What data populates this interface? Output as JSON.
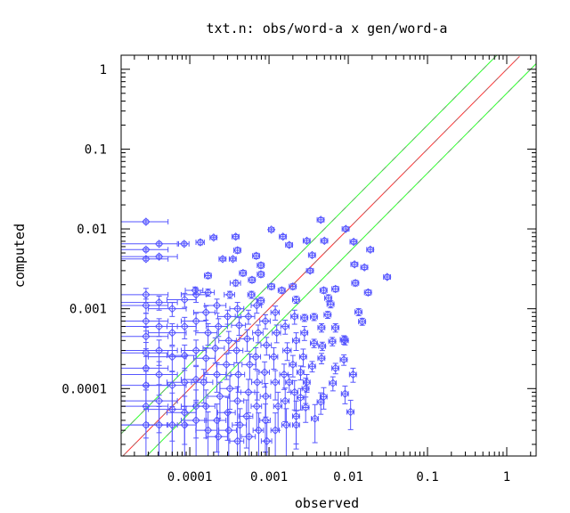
{
  "chart_data": {
    "type": "scatter",
    "title": "txt.n: obs/word-a x gen/word-a",
    "xlabel": "observed",
    "ylabel": "computed",
    "xscale": "log",
    "yscale": "log",
    "xlim": [
      1.36e-05,
      2.35
    ],
    "ylim": [
      1.43e-05,
      1.5
    ],
    "xticks": [
      {
        "v": 0.0001,
        "label": "0.0001"
      },
      {
        "v": 0.001,
        "label": "0.001"
      },
      {
        "v": 0.01,
        "label": "0.01"
      },
      {
        "v": 0.1,
        "label": "0.1"
      },
      {
        "v": 1,
        "label": "1"
      }
    ],
    "yticks": [
      {
        "v": 0.0001,
        "label": "0.0001"
      },
      {
        "v": 0.001,
        "label": "0.001"
      },
      {
        "v": 0.01,
        "label": "0.01"
      },
      {
        "v": 0.1,
        "label": "0.1"
      },
      {
        "v": 1,
        "label": "1"
      }
    ],
    "reference_lines": [
      {
        "name": "y = x",
        "factor": 1,
        "color": "#ff3030"
      },
      {
        "name": "y = 2x",
        "factor": 2,
        "color": "#30ff30"
      },
      {
        "name": "y = x/2",
        "factor": 0.5,
        "color": "#30ff30"
      }
    ],
    "marker_color": "#5555ff",
    "point_format": [
      "observed",
      "computed",
      "x_rel_err",
      "y_rel_err"
    ],
    "points": [
      [
        2.8e-05,
        0.0123,
        0.9,
        0.05
      ],
      [
        4.1e-05,
        0.0065,
        0.7,
        0.05
      ],
      [
        2.8e-05,
        0.0055,
        0.9,
        0.05
      ],
      [
        4.1e-05,
        0.0045,
        0.7,
        0.05
      ],
      [
        2.8e-05,
        0.0042,
        0.9,
        0.05
      ],
      [
        8.5e-05,
        0.0065,
        0.15,
        0.05
      ],
      [
        0.000136,
        0.0068,
        0.12,
        0.07
      ],
      [
        0.0002,
        0.0078,
        0.1,
        0.05
      ],
      [
        0.00038,
        0.008,
        0.1,
        0.06
      ],
      [
        0.00107,
        0.0098,
        0.08,
        0.05
      ],
      [
        0.0004,
        0.0054,
        0.1,
        0.08
      ],
      [
        0.00026,
        0.0042,
        0.1,
        0.05
      ],
      [
        0.00035,
        0.0042,
        0.1,
        0.05
      ],
      [
        0.00069,
        0.0046,
        0.1,
        0.08
      ],
      [
        0.00079,
        0.0035,
        0.1,
        0.08
      ],
      [
        0.00047,
        0.0028,
        0.1,
        0.08
      ],
      [
        0.00017,
        0.0026,
        0.1,
        0.08
      ],
      [
        0.0015,
        0.008,
        0.1,
        0.06
      ],
      [
        0.0018,
        0.0063,
        0.1,
        0.06
      ],
      [
        0.003,
        0.0071,
        0.1,
        0.06
      ],
      [
        0.005,
        0.0071,
        0.1,
        0.06
      ],
      [
        0.0035,
        0.0047,
        0.1,
        0.06
      ],
      [
        0.0045,
        0.013,
        0.1,
        0.06
      ],
      [
        0.0093,
        0.01,
        0.1,
        0.06
      ],
      [
        0.019,
        0.0055,
        0.1,
        0.06
      ],
      [
        0.0117,
        0.0069,
        0.1,
        0.06
      ],
      [
        0.012,
        0.0036,
        0.1,
        0.06
      ],
      [
        0.016,
        0.0033,
        0.1,
        0.06
      ],
      [
        0.0033,
        0.003,
        0.1,
        0.06
      ],
      [
        0.00107,
        0.0019,
        0.1,
        0.08
      ],
      [
        0.002,
        0.0019,
        0.1,
        0.08
      ],
      [
        0.00145,
        0.0017,
        0.1,
        0.08
      ],
      [
        0.00079,
        0.0027,
        0.1,
        0.08
      ],
      [
        0.00061,
        0.0023,
        0.1,
        0.08
      ],
      [
        0.00038,
        0.0021,
        0.15,
        0.08
      ],
      [
        0.000117,
        0.0017,
        0.25,
        0.1
      ],
      [
        0.00017,
        0.0016,
        0.2,
        0.1
      ],
      [
        0.00032,
        0.0015,
        0.15,
        0.1
      ],
      [
        0.0006,
        0.0015,
        0.1,
        0.1
      ],
      [
        0.00079,
        0.00126,
        0.1,
        0.1
      ],
      [
        0.0022,
        0.0013,
        0.1,
        0.1
      ],
      [
        0.0049,
        0.0017,
        0.1,
        0.08
      ],
      [
        0.0069,
        0.00177,
        0.1,
        0.08
      ],
      [
        0.0123,
        0.0021,
        0.1,
        0.08
      ],
      [
        0.0178,
        0.0016,
        0.1,
        0.08
      ],
      [
        0.0056,
        0.00136,
        0.1,
        0.1
      ],
      [
        0.006,
        0.00114,
        0.1,
        0.1
      ],
      [
        0.0055,
        0.00084,
        0.1,
        0.1
      ],
      [
        0.0028,
        0.00077,
        0.1,
        0.1
      ],
      [
        0.0037,
        0.00079,
        0.1,
        0.1
      ],
      [
        0.0046,
        0.00058,
        0.1,
        0.12
      ],
      [
        0.0069,
        0.00058,
        0.1,
        0.12
      ],
      [
        0.0088,
        0.00041,
        0.1,
        0.12
      ],
      [
        0.0063,
        0.00039,
        0.1,
        0.12
      ],
      [
        0.0047,
        0.00034,
        0.1,
        0.12
      ],
      [
        0.0037,
        0.00037,
        0.1,
        0.12
      ],
      [
        0.0088,
        0.00023,
        0.1,
        0.15
      ],
      [
        0.0069,
        0.00018,
        0.1,
        0.15
      ],
      [
        0.0046,
        0.00024,
        0.1,
        0.15
      ],
      [
        0.0035,
        0.00019,
        0.1,
        0.15
      ],
      [
        0.0025,
        0.00016,
        0.1,
        0.2
      ],
      [
        0.0018,
        0.00012,
        0.1,
        0.25
      ],
      [
        0.003,
        0.00012,
        0.1,
        0.25
      ],
      [
        0.0049,
        7.9e-05,
        0.1,
        0.3
      ],
      [
        0.0025,
        7.7e-05,
        0.1,
        0.3
      ],
      [
        0.0029,
        5.8e-05,
        0.1,
        0.35
      ],
      [
        0.0022,
        3.5e-05,
        0.1,
        0.5
      ],
      [
        0.0135,
        0.00091,
        0.1,
        0.1
      ],
      [
        0.015,
        0.00069,
        0.1,
        0.1
      ],
      [
        0.031,
        0.0025,
        0.1,
        0.06
      ],
      [
        0.0107,
        5.1e-05,
        0.1,
        0.4
      ],
      [
        0.0091,
        8.6e-05,
        0.1,
        0.25
      ],
      [
        0.0038,
        4.2e-05,
        0.1,
        0.5
      ],
      [
        0.0064,
        0.000117,
        0.1,
        0.2
      ],
      [
        0.0045,
        6.8e-05,
        0.1,
        0.3
      ],
      [
        0.0115,
        0.00015,
        0.1,
        0.2
      ],
      [
        0.0091,
        0.0004,
        0.1,
        0.12
      ],
      [
        2.8e-05,
        0.0015,
        0.9,
        0.2
      ],
      [
        2.8e-05,
        0.0011,
        0.9,
        0.2
      ],
      [
        2.8e-05,
        0.0007,
        0.9,
        0.25
      ],
      [
        2.8e-05,
        0.00045,
        0.9,
        0.3
      ],
      [
        2.8e-05,
        0.00028,
        0.9,
        0.35
      ],
      [
        2.8e-05,
        0.00018,
        0.9,
        0.4
      ],
      [
        2.8e-05,
        0.00011,
        0.9,
        0.5
      ],
      [
        2.8e-05,
        6e-05,
        0.9,
        0.6
      ],
      [
        2.8e-05,
        3.5e-05,
        0.9,
        0.7
      ],
      [
        4.1e-05,
        0.0012,
        0.7,
        0.2
      ],
      [
        4.1e-05,
        0.0006,
        0.7,
        0.25
      ],
      [
        4.1e-05,
        0.0003,
        0.7,
        0.35
      ],
      [
        4.1e-05,
        0.00015,
        0.7,
        0.45
      ],
      [
        4.1e-05,
        7e-05,
        0.7,
        0.6
      ],
      [
        4.1e-05,
        3.5e-05,
        0.7,
        0.7
      ],
      [
        6e-05,
        0.001,
        0.5,
        0.2
      ],
      [
        6e-05,
        0.0005,
        0.5,
        0.3
      ],
      [
        6e-05,
        0.00025,
        0.5,
        0.35
      ],
      [
        6e-05,
        0.00011,
        0.5,
        0.5
      ],
      [
        6e-05,
        5.5e-05,
        0.5,
        0.6
      ],
      [
        6e-05,
        3.5e-05,
        0.5,
        0.7
      ],
      [
        8.6e-05,
        0.0013,
        0.4,
        0.2
      ],
      [
        8.6e-05,
        0.0006,
        0.4,
        0.3
      ],
      [
        8.6e-05,
        0.00026,
        0.4,
        0.35
      ],
      [
        8.6e-05,
        0.00012,
        0.4,
        0.5
      ],
      [
        8.6e-05,
        5e-05,
        0.4,
        0.6
      ],
      [
        8.6e-05,
        3.5e-05,
        0.4,
        0.7
      ],
      [
        0.00012,
        0.0015,
        0.35,
        0.2
      ],
      [
        0.00012,
        0.0007,
        0.35,
        0.25
      ],
      [
        0.00012,
        0.0003,
        0.35,
        0.35
      ],
      [
        0.00012,
        0.00013,
        0.35,
        0.45
      ],
      [
        0.00012,
        6e-05,
        0.35,
        0.6
      ],
      [
        0.00012,
        4e-05,
        0.35,
        0.7
      ],
      [
        0.00016,
        0.0009,
        0.3,
        0.2
      ],
      [
        0.00017,
        0.0005,
        0.3,
        0.3
      ],
      [
        0.00016,
        0.00024,
        0.3,
        0.35
      ],
      [
        0.00015,
        0.00012,
        0.3,
        0.45
      ],
      [
        0.00016,
        6e-05,
        0.3,
        0.6
      ],
      [
        0.00017,
        3e-05,
        0.3,
        0.7
      ],
      [
        0.00022,
        0.0011,
        0.3,
        0.2
      ],
      [
        0.00023,
        0.0006,
        0.3,
        0.25
      ],
      [
        0.00021,
        0.00032,
        0.3,
        0.35
      ],
      [
        0.00022,
        0.00015,
        0.3,
        0.4
      ],
      [
        0.00024,
        8e-05,
        0.3,
        0.5
      ],
      [
        0.00022,
        4e-05,
        0.3,
        0.6
      ],
      [
        0.00023,
        2.5e-05,
        0.3,
        0.7
      ],
      [
        0.0003,
        0.0008,
        0.25,
        0.2
      ],
      [
        0.00031,
        0.0004,
        0.25,
        0.3
      ],
      [
        0.00029,
        0.0002,
        0.25,
        0.35
      ],
      [
        0.00032,
        0.0001,
        0.25,
        0.45
      ],
      [
        0.0003,
        5e-05,
        0.25,
        0.55
      ],
      [
        0.00031,
        3e-05,
        0.25,
        0.7
      ],
      [
        0.0004,
        0.001,
        0.2,
        0.2
      ],
      [
        0.00042,
        0.00062,
        0.2,
        0.25
      ],
      [
        0.00039,
        0.0003,
        0.2,
        0.3
      ],
      [
        0.00041,
        0.00015,
        0.2,
        0.4
      ],
      [
        0.0004,
        7e-05,
        0.2,
        0.5
      ],
      [
        0.00043,
        3.5e-05,
        0.2,
        0.6
      ],
      [
        0.0004,
        2.2e-05,
        0.2,
        0.7
      ],
      [
        0.00055,
        0.0008,
        0.2,
        0.2
      ],
      [
        0.00053,
        0.00042,
        0.2,
        0.3
      ],
      [
        0.00057,
        0.0002,
        0.2,
        0.35
      ],
      [
        0.00055,
        9e-05,
        0.2,
        0.45
      ],
      [
        0.00052,
        4.5e-05,
        0.2,
        0.6
      ],
      [
        0.00056,
        2.5e-05,
        0.2,
        0.7
      ],
      [
        0.0007,
        0.0011,
        0.15,
        0.2
      ],
      [
        0.00073,
        0.0005,
        0.15,
        0.25
      ],
      [
        0.00068,
        0.00025,
        0.15,
        0.3
      ],
      [
        0.00071,
        0.00012,
        0.15,
        0.4
      ],
      [
        0.0007,
        6e-05,
        0.15,
        0.5
      ],
      [
        0.00074,
        3e-05,
        0.15,
        0.65
      ],
      [
        0.0009,
        0.0007,
        0.15,
        0.2
      ],
      [
        0.00093,
        0.00035,
        0.15,
        0.25
      ],
      [
        0.00088,
        0.00016,
        0.15,
        0.35
      ],
      [
        0.00091,
        8e-05,
        0.15,
        0.45
      ],
      [
        0.0009,
        4e-05,
        0.15,
        0.6
      ],
      [
        0.00094,
        2.2e-05,
        0.15,
        0.7
      ],
      [
        0.0012,
        0.0009,
        0.12,
        0.2
      ],
      [
        0.00125,
        0.0005,
        0.12,
        0.25
      ],
      [
        0.00115,
        0.00025,
        0.12,
        0.3
      ],
      [
        0.0012,
        0.00012,
        0.12,
        0.4
      ],
      [
        0.0013,
        6e-05,
        0.12,
        0.5
      ],
      [
        0.0012,
        3e-05,
        0.12,
        0.65
      ],
      [
        0.0016,
        0.0006,
        0.12,
        0.2
      ],
      [
        0.0017,
        0.0003,
        0.12,
        0.25
      ],
      [
        0.00155,
        0.00015,
        0.12,
        0.35
      ],
      [
        0.0016,
        7e-05,
        0.12,
        0.45
      ],
      [
        0.00165,
        3.5e-05,
        0.12,
        0.6
      ],
      [
        0.0021,
        0.0008,
        0.1,
        0.2
      ],
      [
        0.0022,
        0.0004,
        0.1,
        0.25
      ],
      [
        0.002,
        0.0002,
        0.1,
        0.3
      ],
      [
        0.0021,
        9e-05,
        0.1,
        0.4
      ],
      [
        0.0022,
        4.5e-05,
        0.1,
        0.55
      ],
      [
        0.0028,
        0.0005,
        0.1,
        0.2
      ],
      [
        0.0027,
        0.00025,
        0.1,
        0.25
      ],
      [
        0.0029,
        0.0001,
        0.1,
        0.35
      ]
    ]
  }
}
